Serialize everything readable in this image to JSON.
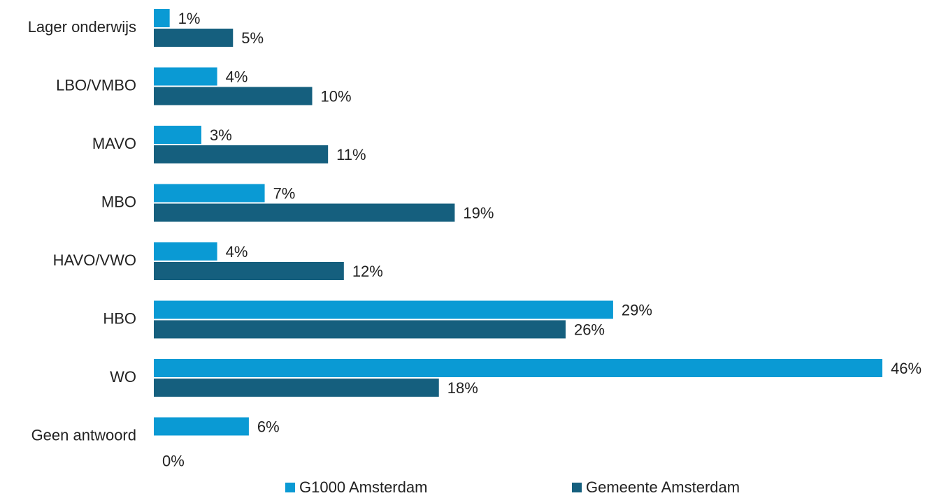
{
  "chart_data": {
    "type": "bar",
    "orientation": "horizontal",
    "categories": [
      "Lager onderwijs",
      "LBO/VMBO",
      "MAVO",
      "MBO",
      "HAVO/VWO",
      "HBO",
      "WO",
      "Geen antwoord"
    ],
    "series": [
      {
        "name": "G1000 Amsterdam",
        "color": "#0a9ad4",
        "values": [
          1,
          4,
          3,
          7,
          4,
          29,
          46,
          6
        ],
        "value_labels": [
          "1%",
          "4%",
          "3%",
          "7%",
          "4%",
          "29%",
          "46%",
          "6%"
        ]
      },
      {
        "name": "Gemeente Amsterdam",
        "color": "#155f7e",
        "values": [
          5,
          10,
          11,
          19,
          12,
          26,
          18,
          0
        ],
        "value_labels": [
          "5%",
          "10%",
          "11%",
          "19%",
          "12%",
          "26%",
          "18%",
          "0%"
        ]
      }
    ],
    "legend": "bottom"
  }
}
